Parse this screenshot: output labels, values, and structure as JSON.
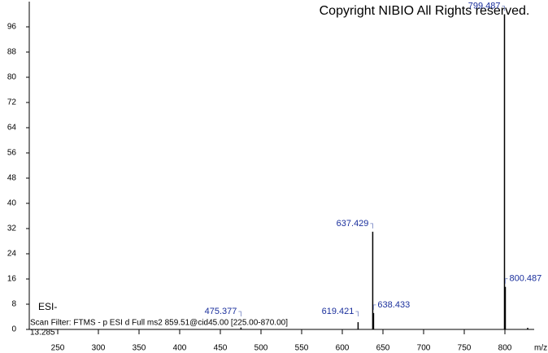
{
  "chart_data": {
    "type": "stick",
    "title": "Copyright NIBIO All Rights reserved.",
    "ionization": "ESI-",
    "scan_filter": "Scan Filter: FTMS - p ESI d Full ms2 859.51@cid45.00 [225.00-870.00]",
    "retention_time": "13.285",
    "x_label": "m/z",
    "x": [
      475.377,
      619.421,
      637.429,
      638.433,
      799.487,
      800.487,
      828
    ],
    "values": [
      0.6,
      2.3,
      31,
      5.2,
      100,
      13.5,
      0.5
    ],
    "labeled": [
      true,
      true,
      true,
      true,
      true,
      true,
      false
    ],
    "color": "#000000",
    "label_color": "#1a2f9c",
    "xlim": [
      215,
      840
    ],
    "ylim": [
      0,
      104
    ],
    "xticks": [
      250,
      300,
      350,
      400,
      450,
      500,
      550,
      600,
      650,
      700,
      750,
      800
    ],
    "yticks": [
      0,
      8,
      16,
      24,
      32,
      40,
      48,
      56,
      64,
      72,
      80,
      88,
      96
    ]
  }
}
